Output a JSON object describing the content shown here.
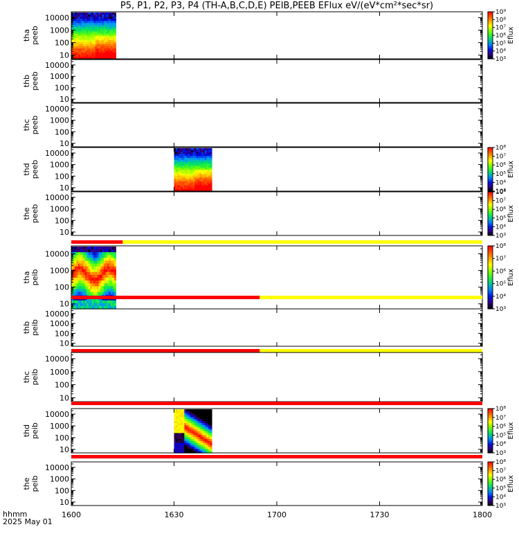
{
  "title": "P5, P1, P2, P3, P4 (TH-A,B,C,D,E) PEIB,PEEB EFlux eV/(eV*cm²*sec*sr)",
  "x_axis": {
    "label_line1": "hhmm",
    "label_line2": "2025 May 01",
    "tick_labels": [
      "1600",
      "1630",
      "1700",
      "1730",
      "1800"
    ]
  },
  "colors": {
    "flag_red": "#ff0000",
    "flag_yellow": "#ffff00",
    "frame": "#000000"
  },
  "chart_data": {
    "type": "heatmap",
    "x_range": [
      "16:00",
      "18:00"
    ],
    "x_ticks": [
      "16:00",
      "16:30",
      "17:00",
      "17:30",
      "18:00"
    ],
    "y_scale": "log",
    "y_tick_labels": [
      "10",
      "100",
      "1000",
      "10000"
    ],
    "colorbar_label": "Eflux",
    "panels": [
      {
        "ylabel": [
          "tha",
          "peeb"
        ],
        "y_range": [
          5,
          30000
        ],
        "y_ticks": [
          10,
          100,
          1000,
          10000
        ],
        "colorbar": {
          "range_exp": [
            3,
            9
          ],
          "labels": [
            "10³",
            "10⁴",
            "10⁵",
            "10⁶",
            "10⁷",
            "10⁸",
            "10⁹"
          ]
        },
        "data_interval": [
          "16:00",
          "16:13"
        ],
        "data_kind": "electron"
      },
      {
        "ylabel": [
          "thb",
          "peeb"
        ],
        "y_range": [
          5,
          30000
        ],
        "y_ticks": [
          10,
          100,
          1000,
          10000
        ]
      },
      {
        "ylabel": [
          "thc",
          "peeb"
        ],
        "y_range": [
          5,
          30000
        ],
        "y_ticks": [
          10,
          100,
          1000,
          10000
        ]
      },
      {
        "ylabel": [
          "thd",
          "peeb"
        ],
        "y_range": [
          5,
          30000
        ],
        "y_ticks": [
          10,
          100,
          1000,
          10000
        ],
        "colorbar": {
          "range_exp": [
            3,
            8
          ],
          "labels": [
            "10³",
            "10⁴",
            "10⁵",
            "10⁶",
            "10⁷",
            "10⁸"
          ]
        },
        "data_interval": [
          "16:30",
          "16:41"
        ],
        "data_kind": "electron"
      },
      {
        "ylabel": [
          "the",
          "peeb"
        ],
        "y_range": [
          5,
          30000
        ],
        "y_ticks": [
          10,
          100,
          1000,
          10000
        ],
        "colorbar": {
          "range_exp": [
            3,
            8
          ],
          "labels": [
            "10³",
            "10⁴",
            "10⁵",
            "10⁶",
            "10⁷",
            "10⁸"
          ]
        }
      },
      {
        "ylabel": [
          "tha",
          "peib"
        ],
        "y_range": [
          5,
          30000
        ],
        "y_ticks": [
          10,
          100,
          1000,
          10000
        ],
        "colorbar": {
          "range_exp": [
            3,
            8
          ],
          "labels": [
            "10³",
            "10⁴",
            "10⁵",
            "10⁶",
            "10⁷",
            "10⁸"
          ]
        },
        "data_interval": [
          "16:00",
          "16:13"
        ],
        "data_kind": "ion",
        "flag_bar": {
          "red_until": "16:15"
        }
      },
      {
        "ylabel": [
          "thb",
          "peib"
        ],
        "y_range": [
          5,
          30000
        ],
        "y_ticks": [
          10,
          100,
          1000,
          10000
        ],
        "flag_bar": {
          "red_until": "16:55"
        }
      },
      {
        "ylabel": [
          "thc",
          "peib"
        ],
        "y_range": [
          5,
          30000
        ],
        "y_ticks": [
          10,
          100,
          1000,
          10000
        ],
        "flag_bar": {
          "red_until": "16:55"
        }
      },
      {
        "ylabel": [
          "thd",
          "peib"
        ],
        "y_range": [
          5,
          30000
        ],
        "y_ticks": [
          10,
          100,
          1000,
          10000
        ],
        "colorbar": {
          "range_exp": [
            3,
            8
          ],
          "labels": [
            "10³",
            "10⁴",
            "10⁵",
            "10⁶",
            "10⁷",
            "10⁸"
          ]
        },
        "data_interval": [
          "16:30",
          "16:41"
        ],
        "data_kind": "ion_d",
        "flag_bar": {
          "red_until": "18:00"
        }
      },
      {
        "ylabel": [
          "the",
          "peib"
        ],
        "y_range": [
          5,
          30000
        ],
        "y_ticks": [
          10,
          100,
          1000,
          10000
        ],
        "colorbar": {
          "range_exp": [
            3,
            8
          ],
          "labels": [
            "10³",
            "10⁴",
            "10⁵",
            "10⁶",
            "10⁷",
            "10⁸"
          ]
        },
        "flag_bar": {
          "red_until": "18:00"
        }
      }
    ]
  }
}
